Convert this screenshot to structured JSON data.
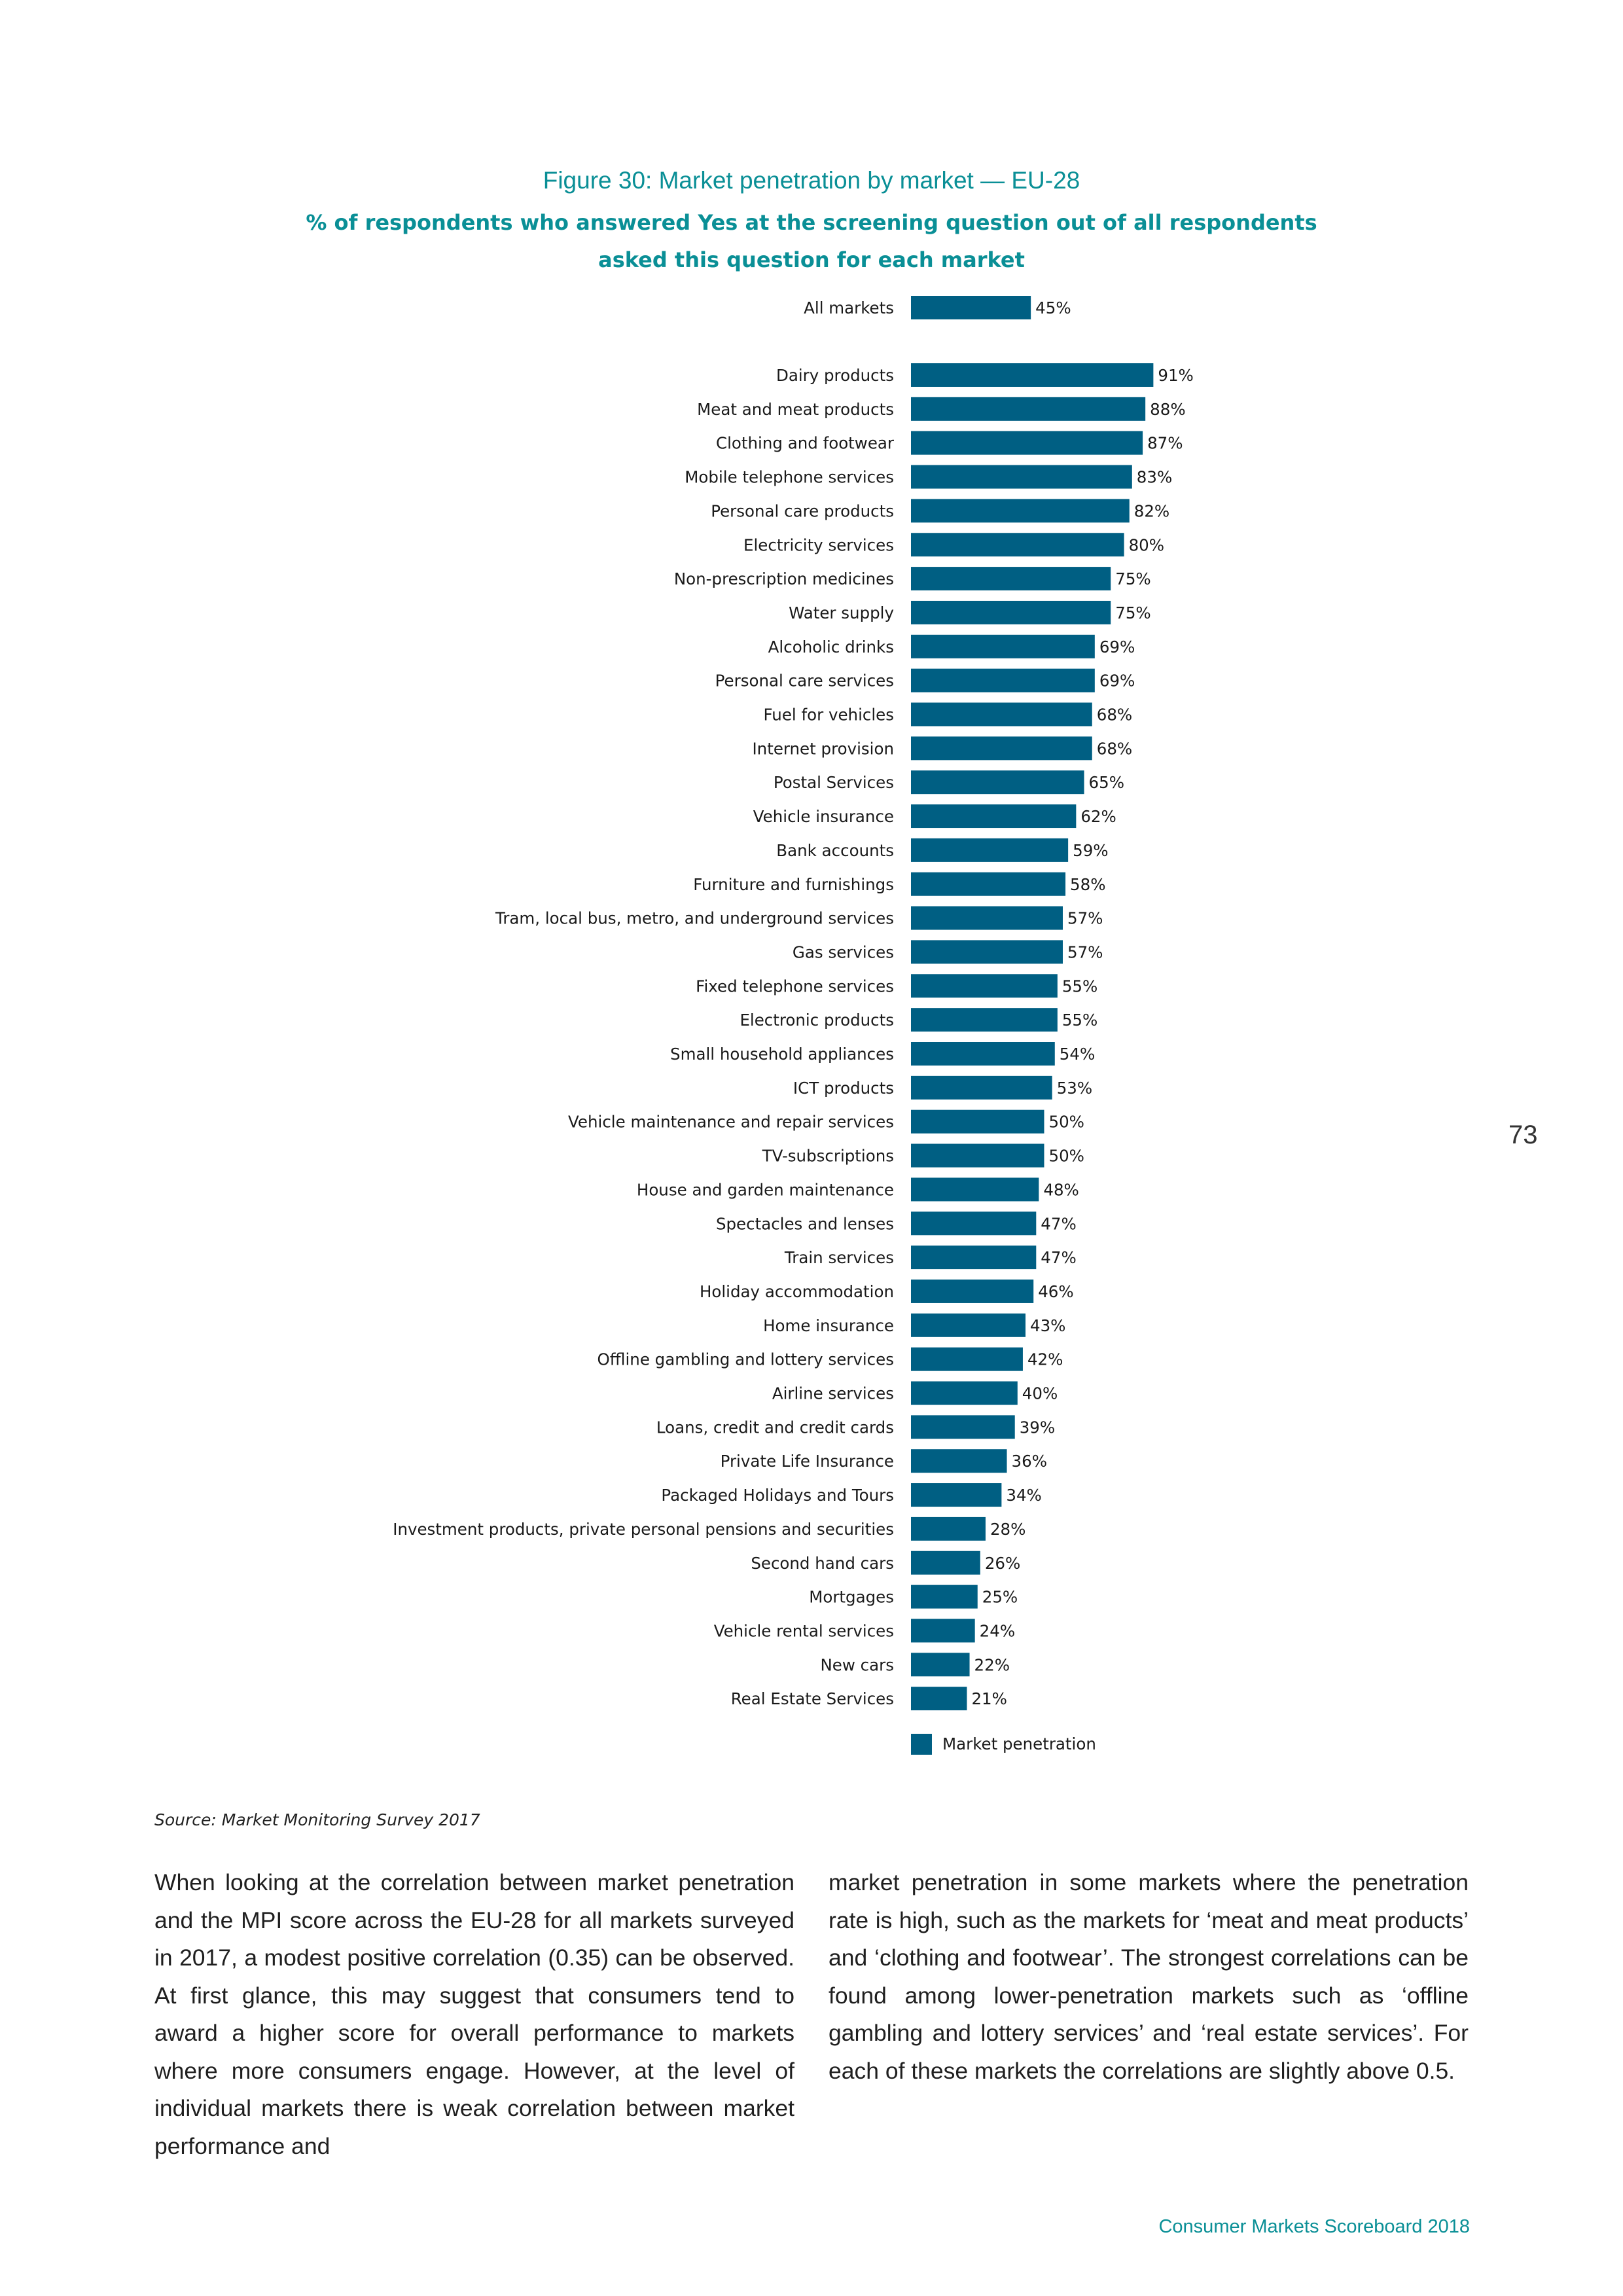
{
  "figure": {
    "title": "Figure 30: Market penetration by market — EU-28",
    "subtitle_line1": "% of respondents who answered Yes at the screening question out of all respondents",
    "subtitle_line2": "asked this question for each market"
  },
  "chart_data": {
    "type": "bar",
    "orientation": "horizontal",
    "title": "Figure 30: Market penetration by market — EU-28",
    "subtitle": "% of respondents who answered Yes at the screening question out of all respondents asked this question for each market",
    "xlabel": "",
    "ylabel": "",
    "xlim": [
      0,
      100
    ],
    "value_suffix": "%",
    "grid": false,
    "legend": "bottom",
    "bar_color": "#005f83",
    "series": [
      {
        "name": "Market penetration"
      }
    ],
    "categories": [
      "All markets",
      "Dairy products",
      "Meat and meat products",
      "Clothing and footwear",
      "Mobile telephone services",
      "Personal care products",
      "Electricity services",
      "Non-prescription medicines",
      "Water supply",
      "Alcoholic drinks",
      "Personal care services",
      "Fuel for vehicles",
      "Internet provision",
      "Postal Services",
      "Vehicle insurance",
      "Bank accounts",
      "Furniture and furnishings",
      "Tram, local bus, metro, and underground services",
      "Gas services",
      "Fixed telephone services",
      "Electronic products",
      "Small household appliances",
      "ICT products",
      "Vehicle maintenance and repair services",
      "TV-subscriptions",
      "House and garden maintenance",
      "Spectacles and lenses",
      "Train services",
      "Holiday accommodation",
      "Home insurance",
      "Offline gambling and lottery services",
      "Airline services",
      "Loans, credit and credit cards",
      "Private Life Insurance",
      "Packaged Holidays and Tours",
      "Investment products, private personal pensions and securities",
      "Second hand cars",
      "Mortgages",
      "Vehicle rental services",
      "New cars",
      "Real Estate Services"
    ],
    "values": [
      45,
      91,
      88,
      87,
      83,
      82,
      80,
      75,
      75,
      69,
      69,
      68,
      68,
      65,
      62,
      59,
      58,
      57,
      57,
      55,
      55,
      54,
      53,
      50,
      50,
      48,
      47,
      47,
      46,
      43,
      42,
      40,
      39,
      36,
      34,
      28,
      26,
      25,
      24,
      22,
      21
    ]
  },
  "legend": {
    "label": "Market penetration",
    "color": "#005f83"
  },
  "source": "Source: Market Monitoring Survey 2017",
  "body": {
    "col1": "When looking at the correlation between market penetration and the MPI score across the EU-28 for all markets surveyed in 2017, a modest positive correlation (0.35) can be observed. At first glance, this may suggest that consumers tend to award a higher score for overall performance to markets where more consumers engage. However, at the level of individual markets there is weak correlation between market performance and",
    "col2": "market penetration in some markets where the penetration rate is high, such as the markets for ‘meat and meat products’ and ‘clothing and footwear’. The strongest correlations can be found among lower-penetration markets such as ‘offline gambling and lottery services’ and ‘real estate services’. For each of these markets the correlations are slightly above 0.5."
  },
  "page_number": "73",
  "footer": "Consumer Markets Scoreboard 2018"
}
